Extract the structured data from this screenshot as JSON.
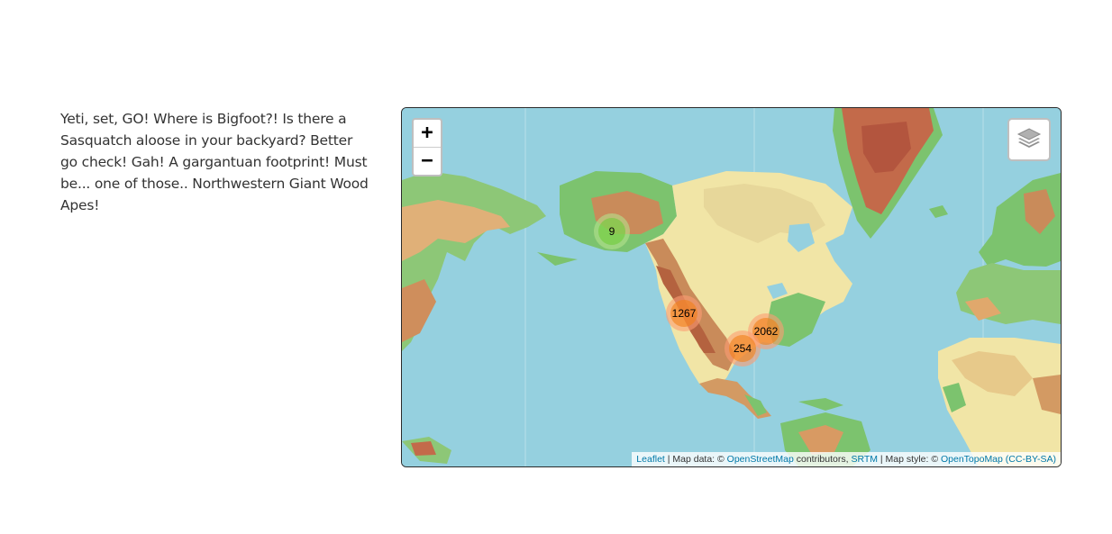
{
  "intro": {
    "text": "Yeti, set, GO! Where is Bigfoot?! Is there a Sasquatch aloose in your backyard? Better go check! Gah! A gargantuan footprint! Must be... one of those.. Northwestern Giant Wood Apes!"
  },
  "map": {
    "zoom_in_label": "+",
    "zoom_out_label": "−",
    "layers_icon": "layers-icon",
    "clusters": [
      {
        "count": "9",
        "region": "Alaska",
        "size": "small"
      },
      {
        "count": "1267",
        "region": "Pacific Northwest",
        "size": "large"
      },
      {
        "count": "2062",
        "region": "Eastern US",
        "size": "large"
      },
      {
        "count": "254",
        "region": "Southern US",
        "size": "large"
      }
    ],
    "attribution": {
      "leaflet": "Leaflet",
      "sep1": " | Map data: © ",
      "osm": "OpenStreetMap",
      "contrib": " contributors, ",
      "srtm": "SRTM",
      "sep2": " | Map style: © ",
      "opentopomap": "OpenTopoMap",
      "license": "(CC-BY-SA)"
    },
    "colors": {
      "water": "#95d0df",
      "lowland": "#7cc36e",
      "plains": "#f1e5a6",
      "hills": "#e0a86c",
      "mountains": "#b8643f",
      "ice": "#c36a4a"
    }
  }
}
